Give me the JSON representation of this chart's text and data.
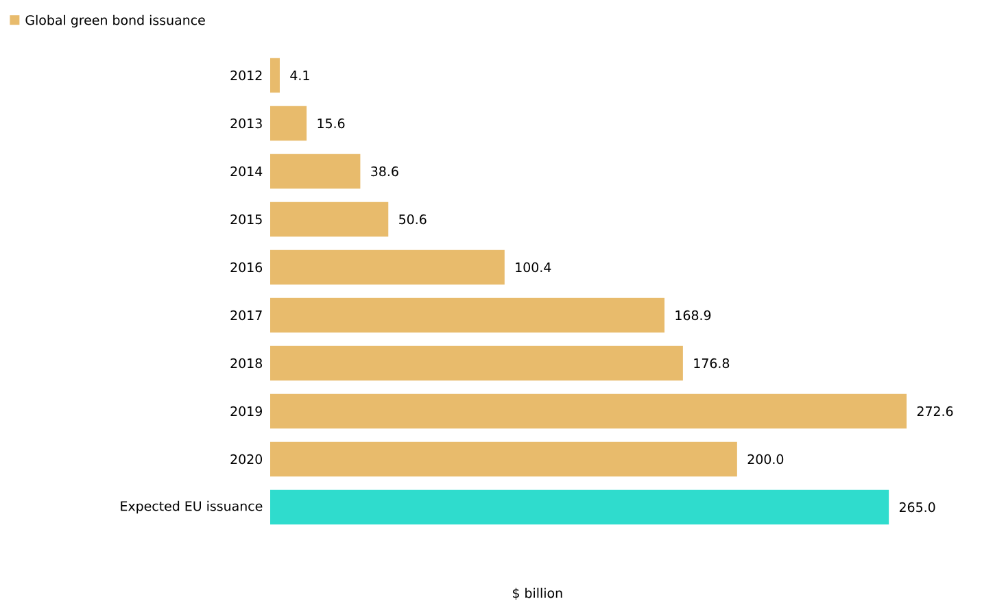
{
  "chart_data": {
    "type": "bar",
    "orientation": "horizontal",
    "legend": "top left",
    "xlabel": "$ billion",
    "categories": [
      "2012",
      "2013",
      "2014",
      "2015",
      "2016",
      "2017",
      "2018",
      "2019",
      "2020",
      "Expected EU issuance"
    ],
    "series": [
      {
        "name": "Global green bond issuance",
        "color": "#e8bb6c",
        "colors": [
          "#e8bb6c",
          "#e8bb6c",
          "#e8bb6c",
          "#e8bb6c",
          "#e8bb6c",
          "#e8bb6c",
          "#e8bb6c",
          "#e8bb6c",
          "#e8bb6c",
          "#2fdccd"
        ],
        "values": [
          4.1,
          15.6,
          38.6,
          50.6,
          100.4,
          168.9,
          176.8,
          272.6,
          200.0,
          265.0
        ],
        "value_labels": [
          "4.1",
          "15.6",
          "38.6",
          "50.6",
          "100.4",
          "168.9",
          "176.8",
          "272.6",
          "200.0",
          "265.0"
        ]
      }
    ]
  }
}
